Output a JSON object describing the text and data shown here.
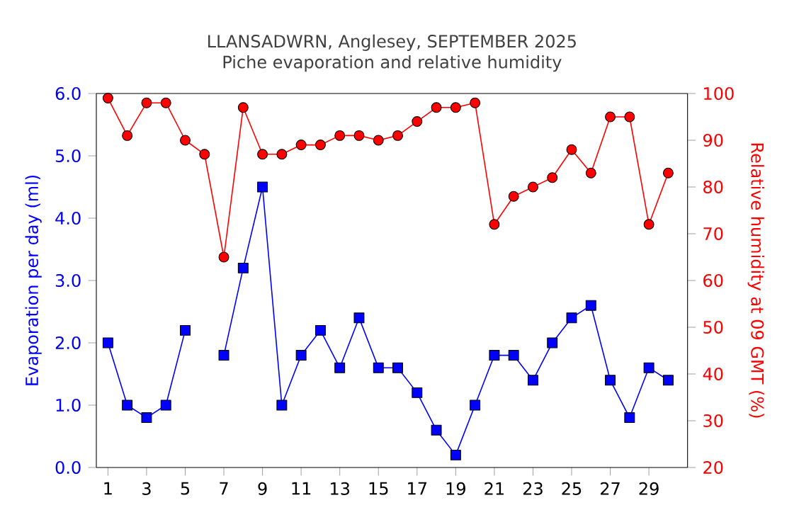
{
  "chart_data": {
    "type": "line",
    "title": "LLANSADWRN, Anglesey, SEPTEMBER 2025",
    "subtitle": "Piche evaporation and relative humidity",
    "ylabel": "Evaporation per day (ml)",
    "y2label": "Relative humidity at 09 GMT (%)",
    "x": [
      1,
      2,
      3,
      4,
      5,
      6,
      7,
      8,
      9,
      10,
      11,
      12,
      13,
      14,
      15,
      16,
      17,
      18,
      19,
      20,
      21,
      22,
      23,
      24,
      25,
      26,
      27,
      28,
      29,
      30
    ],
    "xlim": [
      0.4,
      31
    ],
    "xticks": [
      1,
      3,
      5,
      7,
      9,
      11,
      13,
      15,
      17,
      19,
      21,
      23,
      25,
      27,
      29
    ],
    "ylim": [
      0,
      6
    ],
    "yticks": [
      {
        "value": 0,
        "label": "0.0"
      },
      {
        "value": 1,
        "label": "1.0"
      },
      {
        "value": 2,
        "label": "2.0"
      },
      {
        "value": 3,
        "label": "3.0"
      },
      {
        "value": 4,
        "label": "4.0"
      },
      {
        "value": 5,
        "label": "5.0"
      },
      {
        "value": 6,
        "label": "6.0"
      }
    ],
    "y2lim": [
      20,
      100
    ],
    "y2ticks": [
      20,
      30,
      40,
      50,
      60,
      70,
      80,
      90,
      100
    ],
    "grid": false,
    "series": [
      {
        "color": "#0000ff",
        "marker": "square",
        "values": [
          2.0,
          1.0,
          0.8,
          1.0,
          2.2,
          null,
          1.8,
          3.2,
          4.5,
          1.0,
          1.8,
          2.2,
          1.6,
          2.4,
          1.6,
          1.6,
          1.2,
          0.6,
          0.2,
          1.0,
          1.8,
          1.8,
          1.4,
          2.0,
          2.4,
          2.6,
          1.4,
          0.8,
          1.6,
          1.4
        ]
      },
      {
        "color": "#ff0000",
        "marker": "circle",
        "axis": "y2",
        "values": [
          99,
          91,
          98,
          98,
          90,
          87,
          65,
          97,
          87,
          87,
          89,
          89,
          91,
          91,
          90,
          91,
          94,
          97,
          97,
          98,
          72,
          78,
          80,
          82,
          88,
          83,
          95,
          95,
          72,
          83
        ]
      }
    ]
  }
}
